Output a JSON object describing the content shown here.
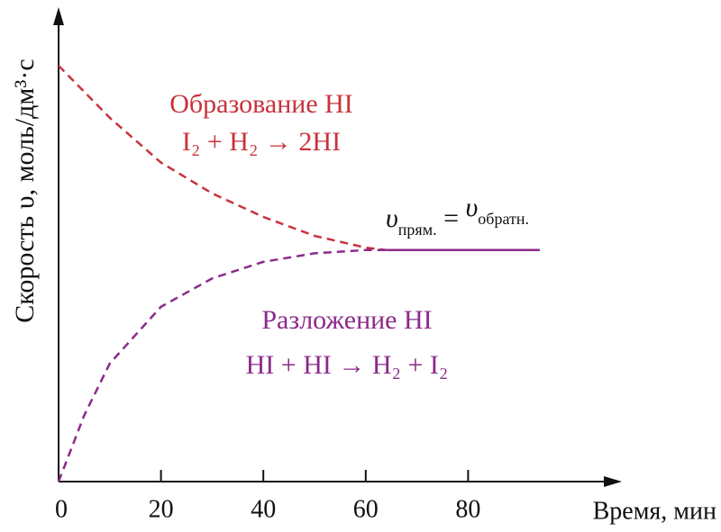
{
  "chart_data": {
    "type": "line",
    "y_label": "Скорость υ, моль/дм³·с",
    "x_label": "Время, мин",
    "xlim": [
      0,
      108
    ],
    "ylim": [
      0,
      100
    ],
    "xticks": [
      0,
      20,
      40,
      60,
      80
    ],
    "series": [
      {
        "name": "Образование HI",
        "equation": "I₂ + H₂ → 2HI",
        "color": "#c8323c",
        "dashed": true,
        "x": [
          0,
          10,
          20,
          30,
          40,
          50,
          60,
          64
        ],
        "values": [
          88,
          77,
          67.5,
          61,
          56,
          52,
          49.5,
          49
        ]
      },
      {
        "name": "Разложение HI",
        "equation": "HI + HI → H₂ + I₂",
        "color": "#8c2a8c",
        "dashed": true,
        "x": [
          0,
          5,
          10,
          20,
          30,
          40,
          50,
          60,
          64
        ],
        "values": [
          0,
          14,
          25,
          37,
          43,
          46.5,
          48.3,
          49,
          49
        ]
      },
      {
        "color": "#8c2a8c",
        "dashed": false,
        "x": [
          64,
          94
        ],
        "values": [
          49,
          49
        ]
      }
    ],
    "equilibrium_label": [
      "υ",
      "прям.",
      " = ",
      "υ",
      "обратн."
    ]
  }
}
